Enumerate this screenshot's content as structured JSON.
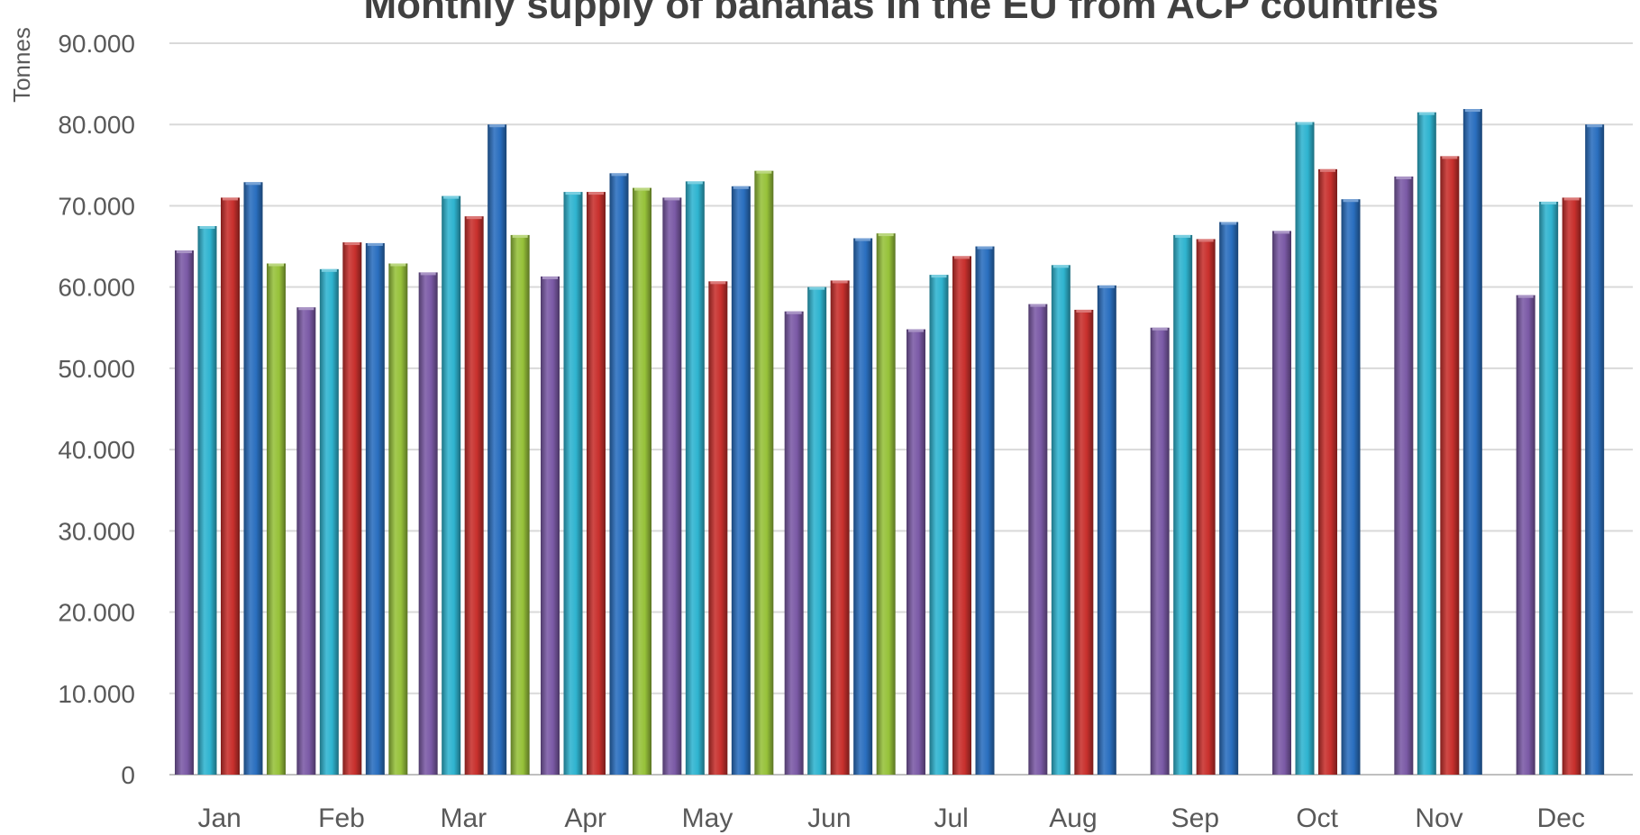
{
  "chart_data": {
    "type": "bar",
    "title": "Monthly supply of bananas in the EU from ACP countries",
    "ylabel": "Tonnes",
    "xlabel": "",
    "ylim": [
      0,
      90000
    ],
    "yticks": [
      "0",
      "10.000",
      "20.000",
      "30.000",
      "40.000",
      "50.000",
      "60.000",
      "70.000",
      "80.000",
      "90.000"
    ],
    "grid": true,
    "legend": "none",
    "categories": [
      "Jan",
      "Feb",
      "Mar",
      "Apr",
      "May",
      "Jun",
      "Jul",
      "Aug",
      "Sep",
      "Oct",
      "Nov",
      "Dec"
    ],
    "series": [
      {
        "color": "#7b5aa6",
        "values": [
          64500,
          57500,
          61800,
          61300,
          71000,
          57000,
          54800,
          57900,
          55000,
          66900,
          73600,
          59000
        ]
      },
      {
        "color": "#2fb4d0",
        "values": [
          67500,
          62200,
          71200,
          71700,
          73000,
          60000,
          61500,
          62700,
          66400,
          80300,
          81500,
          70500
        ]
      },
      {
        "color": "#c8302d",
        "values": [
          71000,
          65500,
          68700,
          71700,
          60700,
          60800,
          63800,
          57200,
          65900,
          74500,
          76100,
          71000
        ]
      },
      {
        "color": "#2a6fbf",
        "values": [
          72900,
          65400,
          80000,
          74000,
          72400,
          66000,
          65000,
          60200,
          68000,
          70800,
          81900,
          80000
        ]
      },
      {
        "color": "#97c23a",
        "values": [
          62900,
          62900,
          66400,
          72200,
          74300,
          66600,
          null,
          null,
          null,
          null,
          null,
          null
        ]
      }
    ]
  }
}
